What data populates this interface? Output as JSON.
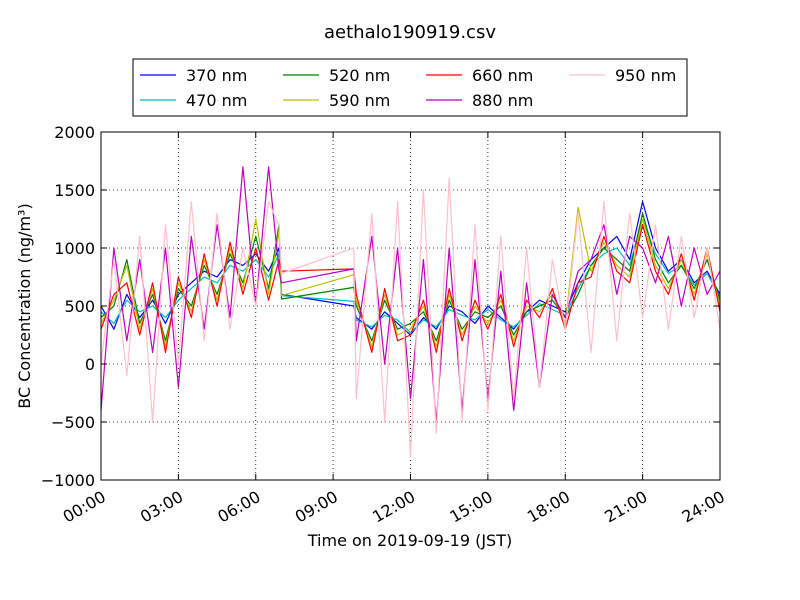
{
  "chart_data": {
    "type": "line",
    "title": "aethalo190919.csv",
    "xlabel": "Time on 2019-09-19 (JST)",
    "ylabel": "BC Concentration (ng/m³)",
    "xlim": [
      0,
      24
    ],
    "ylim": [
      -1000,
      2000
    ],
    "x_ticks": [
      0,
      3,
      6,
      9,
      12,
      15,
      18,
      21,
      24
    ],
    "x_tick_labels": [
      "00:00",
      "03:00",
      "06:00",
      "09:00",
      "12:00",
      "15:00",
      "18:00",
      "21:00",
      "24:00"
    ],
    "y_ticks": [
      -1000,
      -500,
      0,
      500,
      1000,
      1500,
      2000
    ],
    "y_tick_labels": [
      "−1000",
      "−500",
      "0",
      "500",
      "1000",
      "1500",
      "2000"
    ],
    "grid": true,
    "legend": {
      "placement": "top-center",
      "columns": 4
    },
    "series": [
      {
        "name": "370 nm",
        "color": "#0000ff",
        "x": [
          0,
          0.5,
          1,
          1.5,
          2,
          2.5,
          3,
          3.5,
          4,
          4.5,
          5,
          5.5,
          6,
          6.5,
          6.9,
          7.0,
          9.8,
          9.9,
          10.5,
          11,
          11.5,
          12,
          12.5,
          13,
          13.5,
          14,
          14.5,
          15,
          15.5,
          16,
          16.5,
          17,
          17.5,
          18,
          18.5,
          19,
          19.5,
          20,
          20.5,
          21,
          21.5,
          22,
          22.5,
          23,
          23.5,
          24
        ],
        "y": [
          500,
          300,
          600,
          400,
          550,
          350,
          600,
          700,
          800,
          750,
          900,
          850,
          950,
          800,
          1000,
          600,
          500,
          400,
          300,
          450,
          350,
          250,
          400,
          300,
          500,
          450,
          350,
          500,
          400,
          300,
          450,
          550,
          500,
          450,
          700,
          900,
          1000,
          1100,
          900,
          1400,
          1000,
          800,
          900,
          700,
          800,
          600
        ]
      },
      {
        "name": "470 nm",
        "color": "#00bfbf",
        "x": [
          0,
          0.5,
          1,
          1.5,
          2,
          2.5,
          3,
          3.5,
          4,
          4.5,
          5,
          5.5,
          6,
          6.5,
          6.9,
          7.0,
          9.8,
          9.9,
          10.5,
          11,
          11.5,
          12,
          12.5,
          13,
          13.5,
          14,
          14.5,
          15,
          15.5,
          16,
          16.5,
          17,
          17.5,
          18,
          18.5,
          19,
          19.5,
          20,
          20.5,
          21,
          21.5,
          22,
          22.5,
          23,
          23.5,
          24
        ],
        "y": [
          450,
          350,
          550,
          450,
          500,
          400,
          550,
          650,
          750,
          700,
          850,
          800,
          900,
          750,
          950,
          590,
          540,
          380,
          320,
          420,
          380,
          270,
          380,
          320,
          470,
          420,
          380,
          470,
          380,
          320,
          420,
          520,
          470,
          420,
          650,
          850,
          950,
          1000,
          850,
          1250,
          950,
          780,
          850,
          680,
          780,
          580
        ]
      },
      {
        "name": "520 nm",
        "color": "#008000",
        "x": [
          0,
          0.5,
          1,
          1.5,
          2,
          2.5,
          3,
          3.5,
          4,
          4.5,
          5,
          5.5,
          6,
          6.5,
          6.9,
          7.0,
          9.8,
          9.9,
          10.5,
          11,
          11.5,
          12,
          12.5,
          13,
          13.5,
          14,
          14.5,
          15,
          15.5,
          16,
          16.5,
          17,
          17.5,
          18,
          18.5,
          19,
          19.5,
          20,
          20.5,
          21,
          21.5,
          22,
          22.5,
          23,
          23.5,
          24
        ],
        "y": [
          400,
          500,
          900,
          350,
          600,
          200,
          650,
          500,
          850,
          600,
          950,
          700,
          1100,
          650,
          1200,
          560,
          660,
          500,
          200,
          550,
          300,
          350,
          450,
          200,
          550,
          300,
          450,
          400,
          500,
          250,
          450,
          500,
          550,
          400,
          600,
          850,
          1000,
          900,
          800,
          1300,
          900,
          700,
          850,
          650,
          900,
          550
        ]
      },
      {
        "name": "590 nm",
        "color": "#bfbf00",
        "x": [
          0,
          0.5,
          1,
          1.5,
          2,
          2.5,
          3,
          3.5,
          4,
          4.5,
          5,
          5.5,
          6,
          6.5,
          6.9,
          7.0,
          9.8,
          9.9,
          10.5,
          11,
          11.5,
          12,
          12.5,
          13,
          13.5,
          14,
          14.5,
          15,
          15.5,
          16,
          16.5,
          17,
          17.5,
          18,
          18.5,
          19,
          19.5,
          20,
          20.5,
          21,
          21.5,
          22,
          22.5,
          23,
          23.5,
          24
        ],
        "y": [
          350,
          550,
          850,
          300,
          650,
          150,
          700,
          450,
          900,
          550,
          1000,
          650,
          1250,
          600,
          1150,
          590,
          770,
          550,
          150,
          600,
          250,
          300,
          500,
          150,
          600,
          250,
          500,
          350,
          550,
          200,
          500,
          450,
          600,
          350,
          1350,
          800,
          1050,
          850,
          750,
          1250,
          850,
          650,
          900,
          600,
          950,
          500
        ]
      },
      {
        "name": "660 nm",
        "color": "#ff0000",
        "x": [
          0,
          0.5,
          1,
          1.5,
          2,
          2.5,
          3,
          3.5,
          4,
          4.5,
          5,
          5.5,
          6,
          6.5,
          6.9,
          7.0,
          9.8,
          9.9,
          10.5,
          11,
          11.5,
          12,
          12.5,
          13,
          13.5,
          14,
          14.5,
          15,
          15.5,
          16,
          16.5,
          17,
          17.5,
          18,
          18.5,
          19,
          19.5,
          20,
          20.5,
          21,
          21.5,
          22,
          22.5,
          23,
          23.5,
          24
        ],
        "y": [
          300,
          600,
          700,
          250,
          700,
          100,
          750,
          400,
          950,
          500,
          1050,
          600,
          1000,
          550,
          900,
          800,
          820,
          600,
          100,
          650,
          200,
          250,
          550,
          100,
          650,
          200,
          550,
          300,
          600,
          150,
          550,
          400,
          650,
          300,
          700,
          750,
          1100,
          800,
          700,
          1200,
          800,
          600,
          950,
          550,
          1000,
          450
        ]
      },
      {
        "name": "880 nm",
        "color": "#bf00bf",
        "x": [
          0,
          0.5,
          1,
          1.5,
          2,
          2.5,
          3,
          3.5,
          4,
          4.5,
          5,
          5.5,
          6,
          6.5,
          6.9,
          7.0,
          9.8,
          9.9,
          10.5,
          11,
          11.5,
          12,
          12.5,
          13,
          13.5,
          14,
          14.5,
          15,
          15.5,
          16,
          16.5,
          17,
          17.5,
          18,
          18.5,
          19,
          19.5,
          20,
          20.5,
          21,
          21.5,
          22,
          22.5,
          23,
          23.5,
          24
        ],
        "y": [
          -400,
          1000,
          200,
          900,
          100,
          1000,
          -200,
          1100,
          300,
          1200,
          400,
          1700,
          500,
          1700,
          800,
          700,
          820,
          200,
          1100,
          0,
          1000,
          -300,
          900,
          -500,
          1000,
          -400,
          900,
          -300,
          800,
          -400,
          700,
          -200,
          600,
          400,
          800,
          900,
          1200,
          600,
          1100,
          1000,
          700,
          1100,
          500,
          1000,
          600,
          800
        ]
      },
      {
        "name": "950 nm",
        "color": "#ffc0cb",
        "x": [
          0,
          0.5,
          1,
          1.5,
          2,
          2.5,
          3,
          3.5,
          4,
          4.5,
          5,
          5.5,
          6,
          6.5,
          6.9,
          7.0,
          9.8,
          9.9,
          10.5,
          11,
          11.5,
          12,
          12.5,
          13,
          13.5,
          14,
          14.5,
          15,
          15.5,
          16,
          16.5,
          17,
          17.5,
          18,
          18.5,
          19,
          19.5,
          20,
          20.5,
          21,
          21.5,
          22,
          22.5,
          23,
          23.5,
          24
        ],
        "y": [
          0,
          900,
          -100,
          1100,
          -500,
          1200,
          0,
          1400,
          200,
          1300,
          300,
          1000,
          500,
          1400,
          1200,
          780,
          1000,
          -300,
          1300,
          -500,
          1400,
          -800,
          1500,
          -600,
          1600,
          -500,
          1200,
          -400,
          1100,
          -300,
          1000,
          -200,
          900,
          300,
          1300,
          100,
          1400,
          200,
          1300,
          400,
          1200,
          300,
          1100,
          400,
          1000,
          300
        ]
      }
    ]
  }
}
